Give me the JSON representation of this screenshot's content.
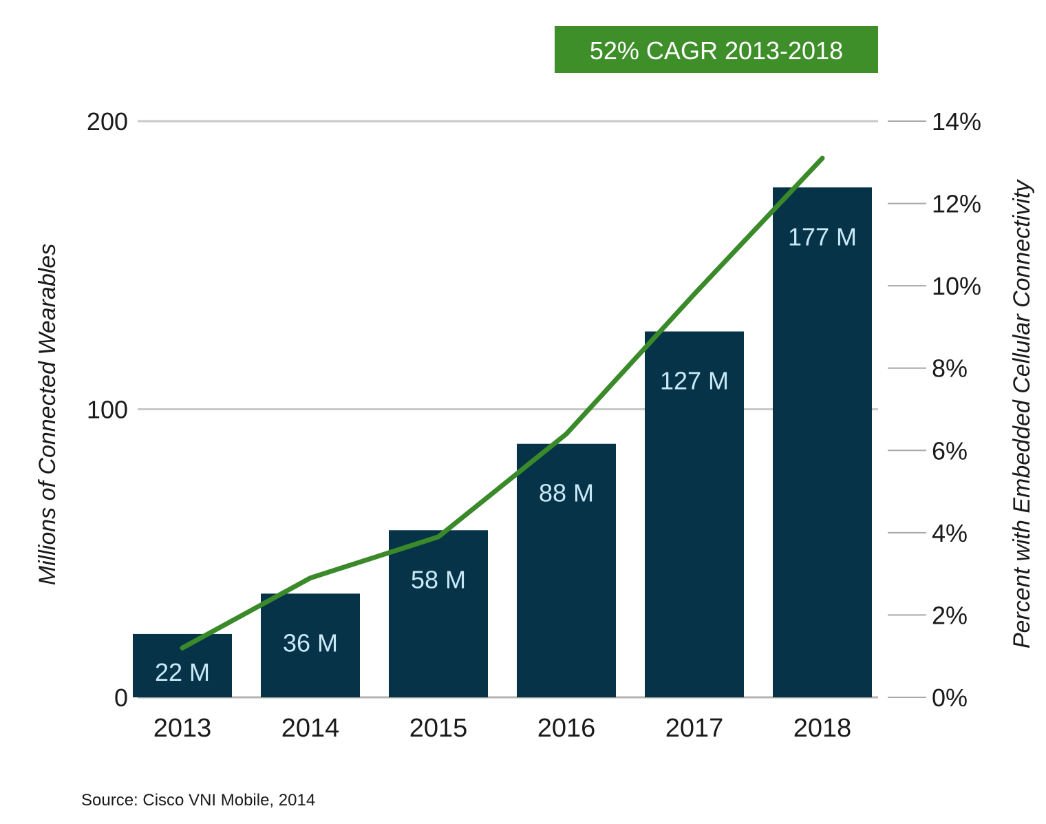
{
  "chart_data": {
    "type": "bar",
    "categories": [
      "2013",
      "2014",
      "2015",
      "2016",
      "2017",
      "2018"
    ],
    "series": [
      {
        "values": [
          22,
          36,
          58,
          88,
          127,
          177
        ],
        "data_labels": [
          "22 M",
          "36 M",
          "58 M",
          "88 M",
          "127 M",
          "177 M"
        ],
        "axis": "left",
        "color": "#073349"
      },
      {
        "values": [
          1.2,
          2.9,
          3.9,
          6.4,
          9.8,
          13.1
        ],
        "axis": "right",
        "type": "line",
        "color": "#3a8a2a"
      }
    ],
    "ylabel": "Millions of Connected Wearables",
    "ylim": [
      0,
      200
    ],
    "yticks": [
      0,
      100,
      200
    ],
    "y2label": "Percent with Embedded Cellular Connectivity",
    "y2lim": [
      0,
      14
    ],
    "y2ticks": [
      "0%",
      "2%",
      "4%",
      "6%",
      "8%",
      "10%",
      "12%",
      "14%"
    ],
    "grid": "horizontal at 100 and 200",
    "annotation": "52% CAGR 2013-2018",
    "source": "Source: Cisco VNI Mobile, 2014"
  },
  "colors": {
    "bar": "#073349",
    "bar_label": "#c9e9f7",
    "line": "#3a8a2a",
    "badge": "#3e8e2a",
    "grid": "#c8c8c8"
  }
}
